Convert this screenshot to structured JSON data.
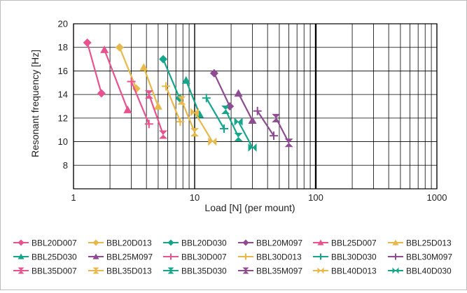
{
  "chart_data": {
    "type": "line",
    "xlabel": "Load [N] (per mount)",
    "ylabel": "Resonant frequency [Hz]",
    "x_scale": "log",
    "xlim": [
      1,
      1000
    ],
    "ylim": [
      6,
      20
    ],
    "x_ticks": [
      1,
      10,
      100,
      1000
    ],
    "x_tick_labels": [
      "1",
      "10",
      "100",
      "1000"
    ],
    "y_ticks": [
      8,
      10,
      12,
      14,
      16,
      18,
      20
    ],
    "y_tick_labels": [
      "8",
      "10",
      "12",
      "14",
      "16",
      "18",
      "20"
    ],
    "grid": true,
    "legend_position": "bottom",
    "series": [
      {
        "name": "BBL20D007",
        "color": "#e8538f",
        "marker": "diamond",
        "points": [
          [
            1.3,
            18.4
          ],
          [
            1.7,
            14.1
          ]
        ]
      },
      {
        "name": "BBL20D013",
        "color": "#e8b84a",
        "marker": "diamond",
        "points": [
          [
            2.4,
            18.0
          ],
          [
            3.3,
            14.5
          ]
        ]
      },
      {
        "name": "BBL20D030",
        "color": "#14a58b",
        "marker": "diamond",
        "points": [
          [
            5.5,
            17.0
          ],
          [
            7.5,
            13.7
          ]
        ]
      },
      {
        "name": "BBL20M097",
        "color": "#8e4b92",
        "marker": "diamond",
        "points": [
          [
            14.5,
            15.8
          ],
          [
            19.5,
            13.0
          ]
        ]
      },
      {
        "name": "BBL25D007",
        "color": "#e8538f",
        "marker": "triangle",
        "points": [
          [
            1.8,
            17.8
          ],
          [
            2.8,
            12.7
          ]
        ]
      },
      {
        "name": "BBL25D013",
        "color": "#e8b84a",
        "marker": "triangle",
        "points": [
          [
            3.8,
            16.3
          ],
          [
            5.0,
            13.0
          ]
        ]
      },
      {
        "name": "BBL25D030",
        "color": "#14a58b",
        "marker": "triangle",
        "points": [
          [
            8.5,
            15.2
          ],
          [
            11.0,
            12.3
          ]
        ]
      },
      {
        "name": "BBL25M097",
        "color": "#8e4b92",
        "marker": "triangle",
        "points": [
          [
            23.0,
            14.1
          ],
          [
            30.0,
            11.8
          ]
        ]
      },
      {
        "name": "BBL30D007",
        "color": "#e8538f",
        "marker": "cross",
        "points": [
          [
            3.0,
            15.1
          ],
          [
            4.2,
            11.5
          ]
        ]
      },
      {
        "name": "BBL30D013",
        "color": "#e8b84a",
        "marker": "cross",
        "points": [
          [
            5.8,
            14.7
          ],
          [
            7.6,
            11.7
          ]
        ]
      },
      {
        "name": "BBL30D030",
        "color": "#14a58b",
        "marker": "cross",
        "points": [
          [
            12.5,
            13.7
          ],
          [
            17.5,
            11.1
          ]
        ]
      },
      {
        "name": "BBL30M097",
        "color": "#8e4b92",
        "marker": "cross",
        "points": [
          [
            33.0,
            12.6
          ],
          [
            45.0,
            10.5
          ]
        ]
      },
      {
        "name": "BBL35D007",
        "color": "#e8538f",
        "marker": "hourglass",
        "points": [
          [
            4.2,
            14.0
          ],
          [
            5.5,
            10.6
          ]
        ]
      },
      {
        "name": "BBL35D013",
        "color": "#e8b84a",
        "marker": "hourglass",
        "points": [
          [
            7.8,
            13.5
          ],
          [
            10.0,
            10.8
          ]
        ]
      },
      {
        "name": "BBL35D030",
        "color": "#14a58b",
        "marker": "hourglass",
        "points": [
          [
            18.0,
            12.7
          ],
          [
            23.0,
            10.4
          ]
        ]
      },
      {
        "name": "BBL35M097",
        "color": "#8e4b92",
        "marker": "hourglass",
        "points": [
          [
            47.0,
            12.0
          ],
          [
            60.0,
            9.9
          ]
        ]
      },
      {
        "name": "BBL40D013",
        "color": "#e8b84a",
        "marker": "bowtie",
        "points": [
          [
            10.0,
            12.5
          ],
          [
            14.0,
            10.0
          ]
        ]
      },
      {
        "name": "BBL40D030",
        "color": "#14a58b",
        "marker": "bowtie",
        "points": [
          [
            23.0,
            11.7
          ],
          [
            30.0,
            9.5
          ]
        ]
      }
    ]
  }
}
